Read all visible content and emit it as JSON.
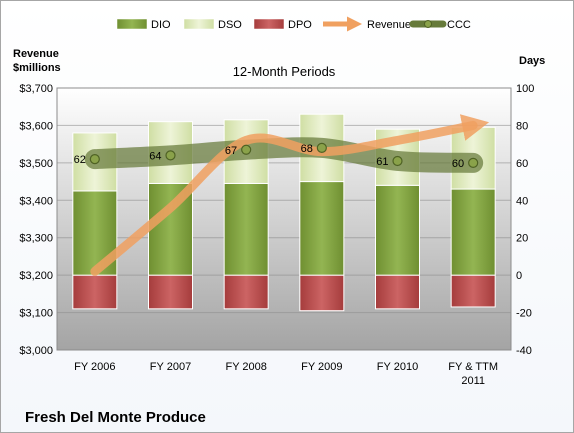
{
  "chart_data": {
    "type": "bar",
    "title": "12-Month Periods",
    "company": "Fresh Del Monte Produce",
    "left_axis_title": [
      "Revenue",
      "$millions"
    ],
    "right_axis_title": "Days",
    "categories": [
      [
        "FY 2006"
      ],
      [
        "FY 2007"
      ],
      [
        "FY 2008"
      ],
      [
        "FY 2009"
      ],
      [
        "FY 2010"
      ],
      [
        "FY & TTM",
        "2011"
      ]
    ],
    "left_axis": {
      "min": 3000,
      "max": 3700,
      "step": 100,
      "ticks": [
        "$3,000",
        "$3,100",
        "$3,200",
        "$3,300",
        "$3,400",
        "$3,500",
        "$3,600",
        "$3,700"
      ]
    },
    "right_axis": {
      "min": -40,
      "max": 100,
      "step": 20,
      "ticks": [
        "-40",
        "-20",
        "0",
        "20",
        "40",
        "60",
        "80",
        "100"
      ]
    },
    "series": [
      {
        "name": "DIO",
        "axis": "right",
        "color": "#7a9a3a",
        "values": [
          45,
          49,
          49,
          50,
          48,
          46
        ]
      },
      {
        "name": "DSO",
        "axis": "right",
        "color": "#dde8b8",
        "values": [
          31,
          33,
          34,
          36,
          30,
          33
        ]
      },
      {
        "name": "DPO",
        "axis": "right",
        "color": "#b84a4a",
        "values": [
          -18,
          -18,
          -18,
          -19,
          -18,
          -17
        ]
      },
      {
        "name": "Revenue",
        "axis": "left",
        "color": "#f0a060",
        "values": [
          3210,
          3380,
          3560,
          3530,
          3560,
          3600
        ]
      },
      {
        "name": "CCC",
        "axis": "right",
        "color": "#667a3a",
        "values": [
          62,
          64,
          67,
          68,
          61,
          60
        ]
      }
    ],
    "data_labels": {
      "CCC": [
        "62",
        "64",
        "67",
        "68",
        "61",
        "60"
      ]
    },
    "legend": {
      "position": "top",
      "entries": [
        "DIO",
        "DSO",
        "DPO",
        "Revenue",
        "CCC"
      ]
    },
    "grid": true
  }
}
